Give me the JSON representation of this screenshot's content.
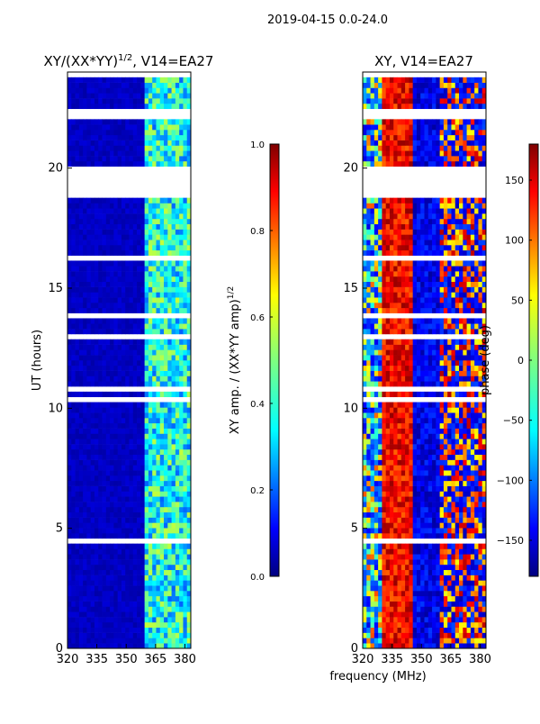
{
  "figure": {
    "suptitle": "2019-04-15 0.0-24.0",
    "xlabel": "frequency (MHz)"
  },
  "chart_data": [
    {
      "type": "heatmap",
      "title_main": "XY/(XX*YY)",
      "title_exp": "1/2",
      "title_suffix": ", V14=EA27",
      "xlabel": "frequency (MHz)",
      "ylabel": "UT (hours)",
      "xlim": [
        320,
        383
      ],
      "ylim": [
        0,
        24
      ],
      "xticks": [
        320,
        335,
        350,
        365,
        380
      ],
      "yticks": [
        0,
        5,
        10,
        15,
        20
      ],
      "colorbar": {
        "label_main": "XY amp. / (XX*YY amp)",
        "label_exp": "1/2",
        "range": [
          0.0,
          1.0
        ],
        "ticks": [
          "0.0",
          "0.2",
          "0.4",
          "0.6",
          "0.8",
          "1.0"
        ],
        "colormap": "jet"
      },
      "description": "Normalized amplitude is mostly near 0 across 320-360 MHz, rising to about 0.3-0.5 in channels 360-383 MHz, with many flagged (blank) time rows."
    },
    {
      "type": "heatmap",
      "title_main": "XY, V14=EA27",
      "xlabel": "frequency (MHz)",
      "ylabel": "",
      "xlim": [
        320,
        383
      ],
      "ylim": [
        0,
        24
      ],
      "xticks": [
        320,
        335,
        350,
        365,
        380
      ],
      "yticks": [
        0,
        5,
        10,
        15,
        20
      ],
      "colorbar": {
        "label_main": "phase (deg)",
        "range": [
          -180,
          180
        ],
        "ticks": [
          "−150",
          "−100",
          "−50",
          "0",
          "50",
          "100",
          "150"
        ],
        "colormap": "jet"
      },
      "description": "Phase (deg) shows noisy structure with values near +150 to +180 around 330-345 MHz and near -180 to -150 around 345-360 MHz, with many flagged rows."
    }
  ]
}
